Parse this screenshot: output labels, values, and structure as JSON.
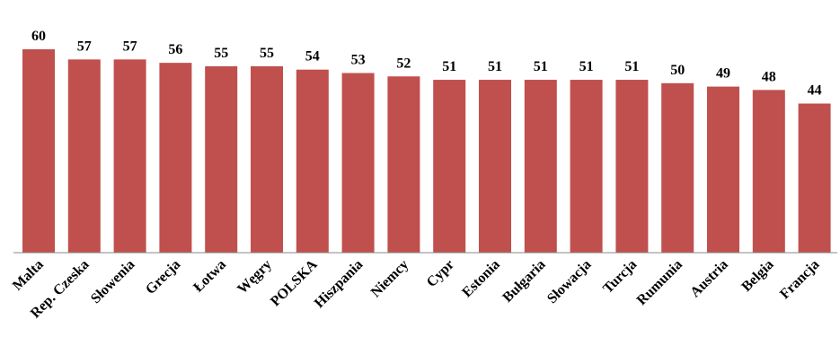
{
  "chart_data": {
    "type": "bar",
    "categories": [
      "Malta",
      "Rep. Czeska",
      "Słowenia",
      "Grecja",
      "Łotwa",
      "Węgry",
      "POLSKA",
      "Hiszpania",
      "Niemcy",
      "Cypr",
      "Estonia",
      "Bułgaria",
      "Słowacja",
      "Turcja",
      "Rumunia",
      "Austria",
      "Belgia",
      "Francja"
    ],
    "values": [
      60,
      57,
      57,
      56,
      55,
      55,
      54,
      53,
      52,
      51,
      51,
      51,
      51,
      51,
      50,
      49,
      48,
      44
    ],
    "color": "#c0504d",
    "ylim": [
      0,
      60
    ]
  }
}
